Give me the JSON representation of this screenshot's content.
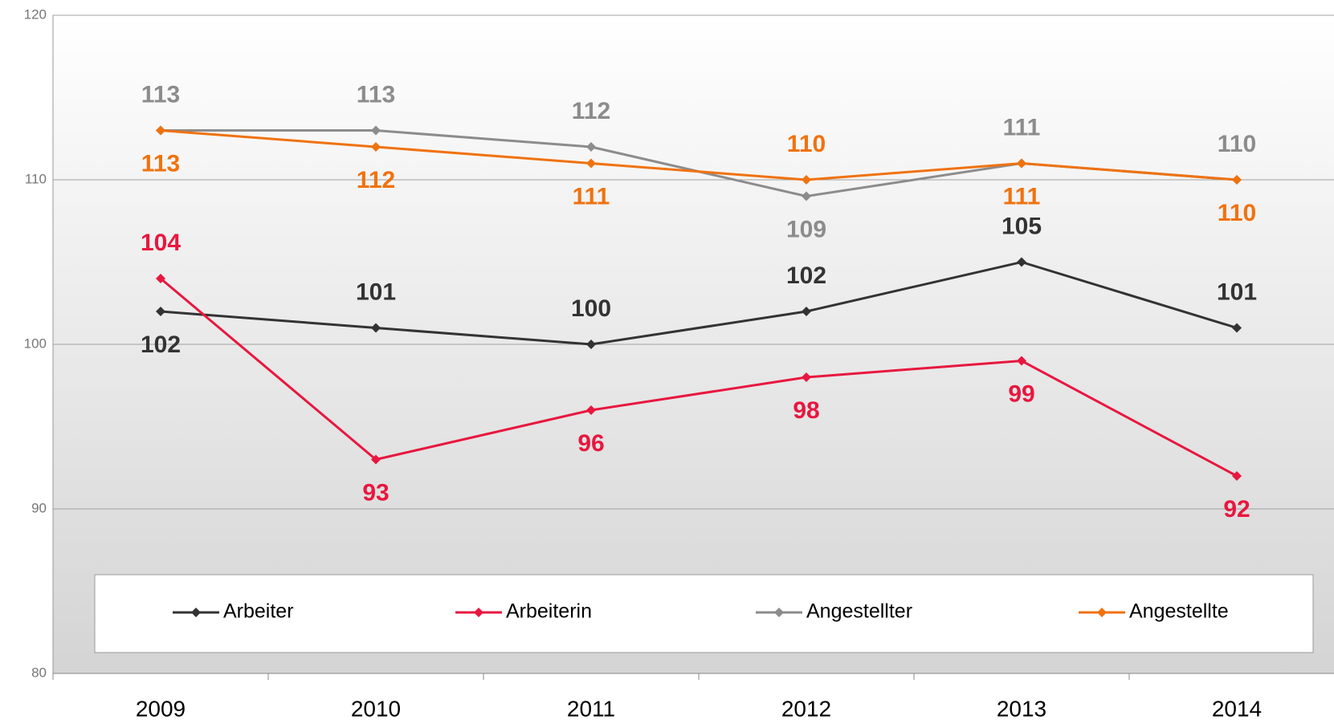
{
  "chart_data": {
    "type": "line",
    "categories": [
      "2009",
      "2010",
      "2011",
      "2012",
      "2013",
      "2014"
    ],
    "series": [
      {
        "name": "Arbeiter",
        "color": "#333333",
        "values": [
          102,
          101,
          100,
          102,
          105,
          101
        ]
      },
      {
        "name": "Arbeiterin",
        "color": "#e8173f",
        "values": [
          104,
          93,
          96,
          98,
          99,
          92
        ]
      },
      {
        "name": "Angestellter",
        "color": "#8c8c8c",
        "values": [
          113,
          113,
          112,
          109,
          111,
          110
        ]
      },
      {
        "name": "Angestellte",
        "color": "#f0720f",
        "values": [
          113,
          112,
          111,
          110,
          111,
          110
        ]
      }
    ],
    "ylim": [
      80,
      120
    ],
    "yticks": [
      80,
      90,
      100,
      110,
      120
    ],
    "grid": true,
    "legend": "bottom"
  }
}
